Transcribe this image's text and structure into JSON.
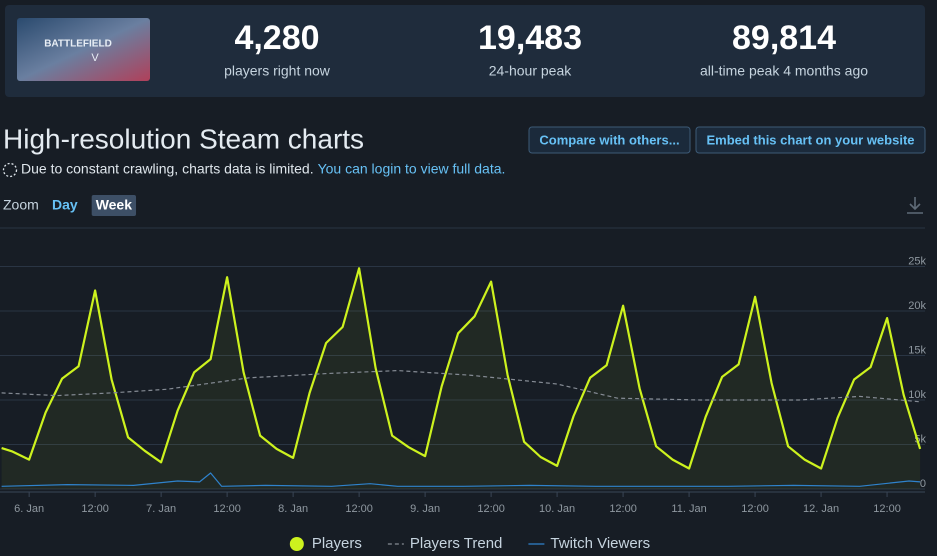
{
  "header": {
    "cover_text": [
      "BATTLEFIELD",
      "V"
    ],
    "stats": [
      {
        "value": "4,280",
        "label": "players right now"
      },
      {
        "value": "19,483",
        "label": "24-hour peak"
      },
      {
        "value": "89,814",
        "label": "all-time peak 4 months ago"
      }
    ]
  },
  "title": "High-resolution Steam charts",
  "buttons": [
    "Compare with others...",
    "Embed this chart on your website"
  ],
  "notice": {
    "text": "Due to constant crawling, charts data is limited.",
    "link": "You can login to view full data."
  },
  "zoom": {
    "label": "Zoom",
    "options": [
      "Day",
      "Week"
    ],
    "active": 1
  },
  "chart_data": {
    "type": "line",
    "xlim": [
      -5.3,
      162.9
    ],
    "xticks": [
      {
        "value": 0,
        "label": "6. Jan"
      },
      {
        "value": 12,
        "label": "12:00"
      },
      {
        "value": 24,
        "label": "7. Jan"
      },
      {
        "value": 36,
        "label": "12:00"
      },
      {
        "value": 48,
        "label": "8. Jan"
      },
      {
        "value": 60,
        "label": "12:00"
      },
      {
        "value": 72,
        "label": "9. Jan"
      },
      {
        "value": 84,
        "label": "12:00"
      },
      {
        "value": 96,
        "label": "10. Jan"
      },
      {
        "value": 108,
        "label": "12:00"
      },
      {
        "value": 120,
        "label": "11. Jan"
      },
      {
        "value": 132,
        "label": "12:00"
      },
      {
        "value": 144,
        "label": "12. Jan"
      },
      {
        "value": 156,
        "label": "12:00"
      }
    ],
    "ylim": [
      0,
      30000
    ],
    "yticks": [
      0,
      {
        "value": 5000,
        "label": "5k"
      },
      {
        "value": 10000,
        "label": "10k"
      },
      {
        "value": 15000,
        "label": "15k"
      },
      {
        "value": 20000,
        "label": "20k"
      },
      {
        "value": 25000,
        "label": "25k"
      }
    ],
    "grid": true,
    "legend": "bottom",
    "series": [
      {
        "name": "Players",
        "color": "#cdf21e",
        "style": "solid",
        "x": [
          -5,
          -3,
          0,
          3,
          6,
          9,
          12,
          15,
          18,
          21,
          24,
          27,
          30,
          33,
          36,
          39,
          42,
          45,
          48,
          51,
          54,
          57,
          60,
          63,
          66,
          69,
          72,
          75,
          78,
          81,
          84,
          87,
          90,
          93,
          96,
          99,
          102,
          105,
          108,
          111,
          114,
          117,
          120,
          123,
          126,
          129,
          132,
          135,
          138,
          141,
          144,
          147,
          150,
          153,
          156,
          159,
          162
        ],
        "values": [
          4600,
          4200,
          3300,
          8600,
          12400,
          13800,
          22300,
          12300,
          5800,
          4300,
          3000,
          8800,
          13100,
          14600,
          23800,
          13100,
          6000,
          4500,
          3500,
          10800,
          16400,
          18200,
          24800,
          13600,
          6000,
          4700,
          3700,
          11500,
          17500,
          19400,
          23300,
          12800,
          5300,
          3600,
          2600,
          8200,
          12500,
          13900,
          20600,
          11300,
          4800,
          3300,
          2300,
          8100,
          12600,
          14000,
          21600,
          11900,
          4800,
          3300,
          2300,
          8000,
          12300,
          13700,
          19200,
          10600,
          4500
        ]
      },
      {
        "name": "Players Trend",
        "color": "#858b94",
        "style": "dashed",
        "x": [
          -5,
          5,
          15,
          25,
          40,
          55,
          67,
          80,
          96,
          107,
          122,
          140,
          151,
          162
        ],
        "values": [
          10800,
          10500,
          10800,
          11200,
          12500,
          13000,
          13300,
          12800,
          11800,
          10200,
          10000,
          10000,
          10400,
          9800
        ]
      },
      {
        "name": "Twitch Viewers",
        "color": "#2f82cc",
        "style": "solid",
        "x": [
          -5,
          7,
          19,
          27,
          31,
          33,
          35,
          43,
          55,
          62,
          67,
          79,
          91,
          103,
          115,
          127,
          139,
          151,
          160,
          162
        ],
        "values": [
          300,
          500,
          400,
          900,
          800,
          1800,
          300,
          400,
          300,
          600,
          300,
          300,
          400,
          300,
          300,
          300,
          400,
          300,
          900,
          800
        ]
      }
    ]
  }
}
